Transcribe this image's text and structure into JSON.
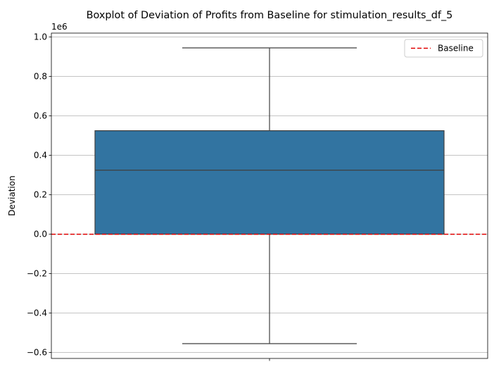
{
  "chart_data": {
    "type": "box",
    "title": "Boxplot of Deviation of Profits from Baseline for stimulation_results_df_5",
    "xlabel": "",
    "ylabel": "Deviation",
    "offset_label": "1e6",
    "ylim": [
      -0.63,
      1.02
    ],
    "yticks": [
      -0.6,
      -0.4,
      -0.2,
      0.0,
      0.2,
      0.4,
      0.6,
      0.8,
      1.0
    ],
    "ytick_labels": [
      "−0.6",
      "−0.4",
      "−0.2",
      "0.0",
      "0.2",
      "0.4",
      "0.6",
      "0.8",
      "1.0"
    ],
    "y_multiplier": 1000000,
    "box": {
      "whisker_low": -0.555,
      "q1": 0.0,
      "median": 0.325,
      "q3": 0.525,
      "whisker_high": 0.945
    },
    "baseline": {
      "value": 0.0,
      "label": "Baseline",
      "color": "#e00000",
      "style": "dashed"
    },
    "legend": {
      "position": "upper right",
      "entries": [
        "Baseline"
      ]
    },
    "grid": {
      "x": false,
      "y": true
    },
    "colors": {
      "box_fill": "#3274a1",
      "box_edge": "#3f3f3f",
      "baseline": "#e00000"
    }
  }
}
